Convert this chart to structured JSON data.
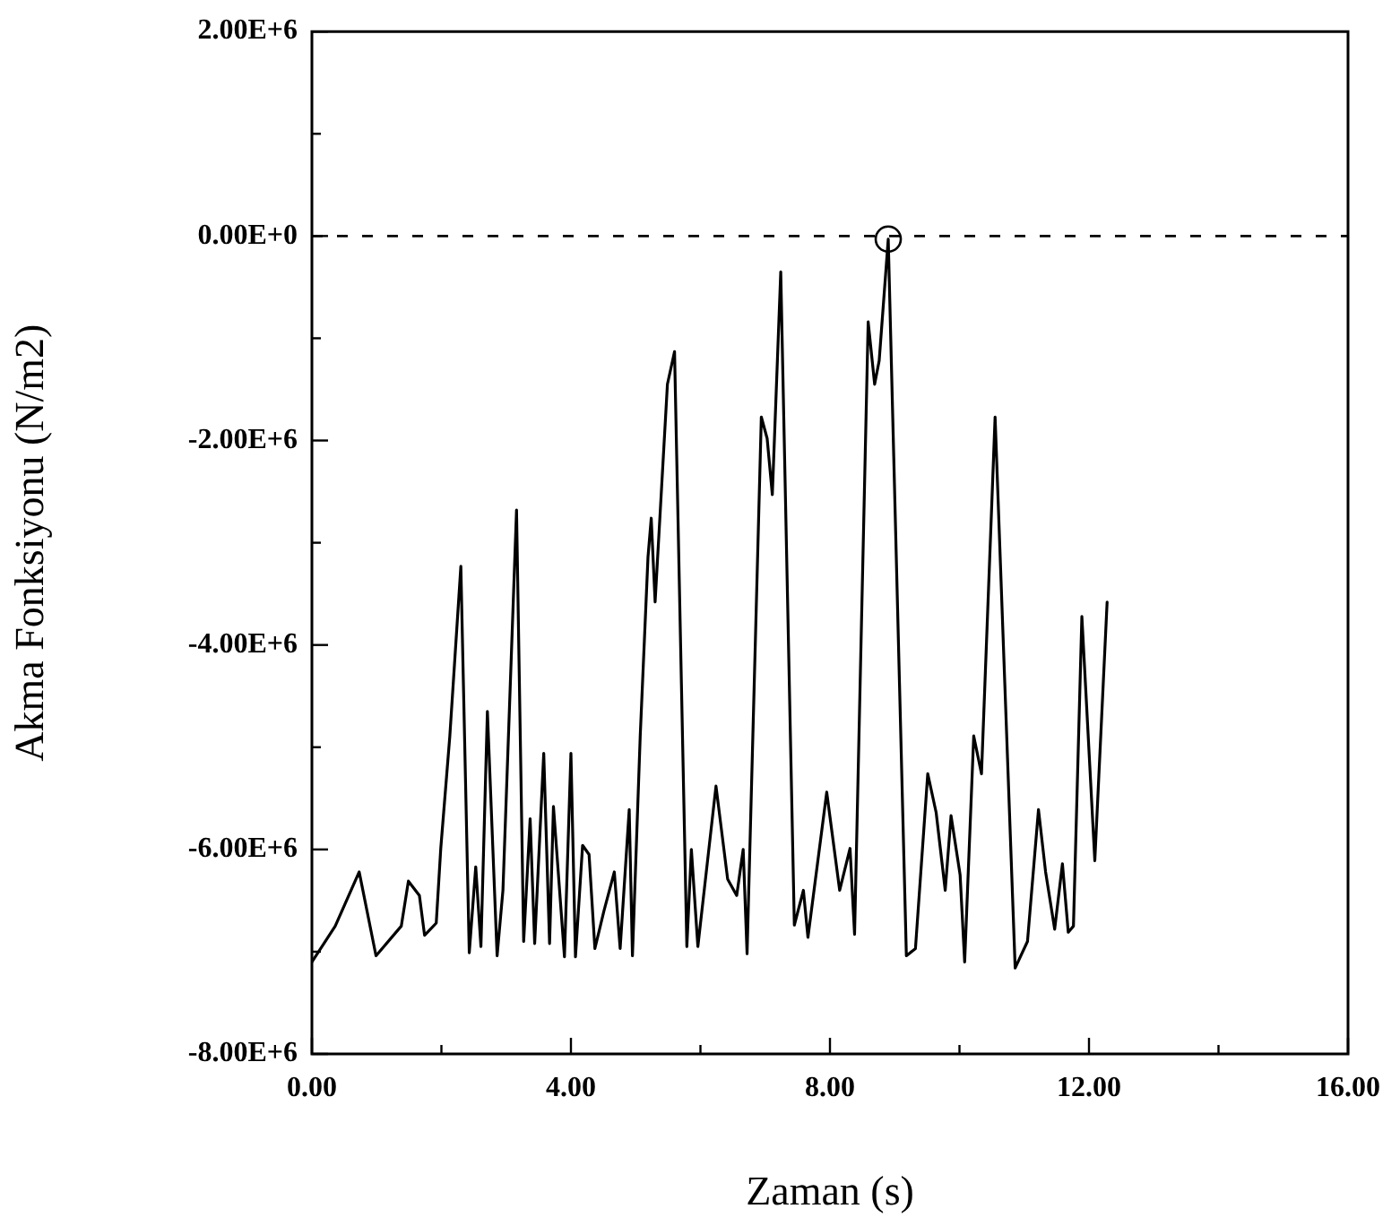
{
  "chart_data": {
    "type": "line",
    "xlabel": "Zaman (s)",
    "ylabel": "Akma Fonksiyonu (N/m2)",
    "xlim": [
      0,
      16
    ],
    "ylim": [
      -8000000,
      2000000
    ],
    "xticks": [
      {
        "value": 0,
        "label": "0.00"
      },
      {
        "value": 2,
        "label": null
      },
      {
        "value": 4,
        "label": "4.00"
      },
      {
        "value": 6,
        "label": null
      },
      {
        "value": 8,
        "label": "8.00"
      },
      {
        "value": 10,
        "label": null
      },
      {
        "value": 12,
        "label": "12.00"
      },
      {
        "value": 14,
        "label": null
      },
      {
        "value": 16,
        "label": "16.00"
      }
    ],
    "yticks": [
      {
        "value": 2000000,
        "label": "2.00E+6"
      },
      {
        "value": 1000000,
        "label": null
      },
      {
        "value": 0,
        "label": "0.00E+0"
      },
      {
        "value": -1000000,
        "label": null
      },
      {
        "value": -2000000,
        "label": "-2.00E+6"
      },
      {
        "value": -3000000,
        "label": null
      },
      {
        "value": -4000000,
        "label": "-4.00E+6"
      },
      {
        "value": -5000000,
        "label": null
      },
      {
        "value": -6000000,
        "label": "-6.00E+6"
      },
      {
        "value": -7000000,
        "label": null
      },
      {
        "value": -8000000,
        "label": "-8.00E+6"
      }
    ],
    "legend": false,
    "ref_lines": [
      {
        "axis": "y",
        "value": 0,
        "color": "#000000",
        "line_style": "dashed"
      }
    ],
    "series": [
      {
        "type": "line",
        "color": "#000000",
        "marker": "none",
        "line_style": "solid",
        "x": [
          0,
          0.36,
          0.73,
          0.99,
          1.38,
          1.49,
          1.66,
          1.74,
          1.92,
          1.99,
          2.13,
          2.3,
          2.43,
          2.53,
          2.61,
          2.71,
          2.86,
          2.95,
          3.16,
          3.27,
          3.37,
          3.44,
          3.58,
          3.67,
          3.73,
          3.9,
          4.0,
          4.07,
          4.18,
          4.28,
          4.37,
          4.51,
          4.67,
          4.76,
          4.9,
          4.95,
          5.07,
          5.19,
          5.24,
          5.3,
          5.49,
          5.6,
          5.79,
          5.86,
          5.96,
          6.24,
          6.42,
          6.56,
          6.66,
          6.72,
          6.94,
          7.03,
          7.11,
          7.24,
          7.45,
          7.59,
          7.66,
          7.95,
          8.15,
          8.31,
          8.38,
          8.59,
          8.69,
          8.76,
          8.9,
          9.18,
          9.32,
          9.51,
          9.64,
          9.78,
          9.87,
          10.01,
          10.08,
          10.22,
          10.34,
          10.55,
          10.86,
          11.05,
          11.22,
          11.33,
          11.47,
          11.59,
          11.68,
          11.76,
          11.89,
          12.09,
          12.28
        ],
        "values": [
          -7100000,
          -6750000,
          -6220000,
          -7040000,
          -6750000,
          -6310000,
          -6450000,
          -6840000,
          -6720000,
          -5990000,
          -4890000,
          -3230000,
          -7010000,
          -6170000,
          -6950000,
          -4650000,
          -7040000,
          -6400000,
          -2680000,
          -6900000,
          -5700000,
          -6920000,
          -5060000,
          -6920000,
          -5580000,
          -7050000,
          -5060000,
          -7050000,
          -5960000,
          -6050000,
          -6970000,
          -6600000,
          -6220000,
          -6970000,
          -5610000,
          -7040000,
          -4890000,
          -3140000,
          -2760000,
          -3580000,
          -1450000,
          -1130000,
          -6950000,
          -6000000,
          -6950000,
          -5380000,
          -6290000,
          -6450000,
          -6000000,
          -7020000,
          -1770000,
          -1980000,
          -2530000,
          -350000,
          -6740000,
          -6400000,
          -6860000,
          -5440000,
          -6400000,
          -5990000,
          -6830000,
          -840000,
          -1450000,
          -1220000,
          -30000,
          -7040000,
          -6970000,
          -5260000,
          -5640000,
          -6400000,
          -5670000,
          -6250000,
          -7100000,
          -4890000,
          -5260000,
          -1770000,
          -7160000,
          -6900000,
          -5610000,
          -6220000,
          -6780000,
          -6140000,
          -6810000,
          -6750000,
          -3720000,
          -6110000,
          -3580000
        ]
      },
      {
        "type": "scatter",
        "color": "#000000",
        "marker": "circle",
        "x": [
          8.9
        ],
        "values": [
          -30000
        ]
      }
    ]
  }
}
